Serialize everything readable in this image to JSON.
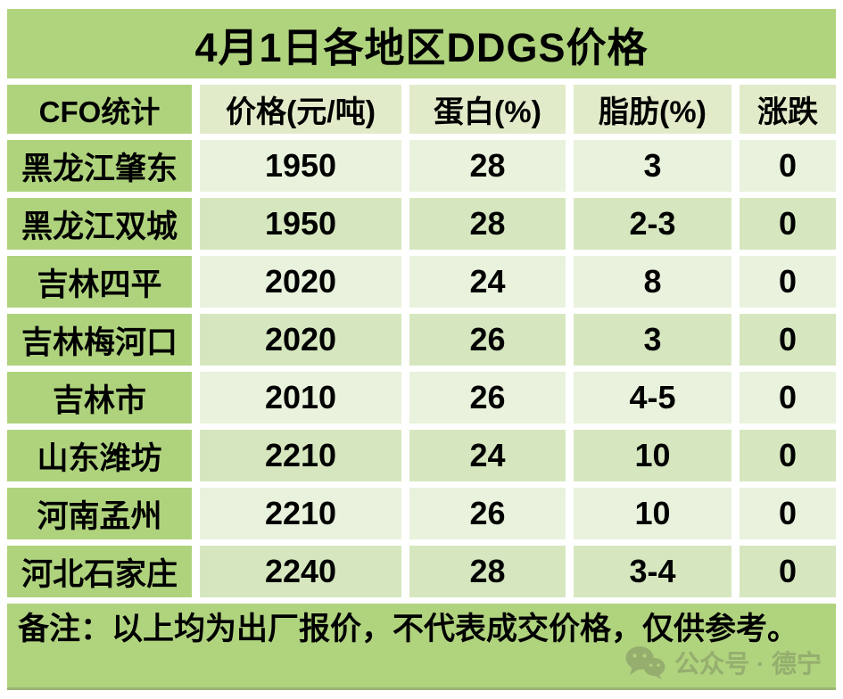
{
  "title": "4月1日各地区DDGS价格",
  "chart_data": {
    "type": "table",
    "title": "4月1日各地区DDGS价格",
    "columns": [
      "CFO统计",
      "价格(元/吨)",
      "蛋白(%)",
      "脂肪(%)",
      "涨跌"
    ],
    "rows": [
      [
        "黑龙江肇东",
        "1950",
        "28",
        "3",
        "0"
      ],
      [
        "黑龙江双城",
        "1950",
        "28",
        "2-3",
        "0"
      ],
      [
        "吉林四平",
        "2020",
        "24",
        "8",
        "0"
      ],
      [
        "吉林梅河口",
        "2020",
        "26",
        "3",
        "0"
      ],
      [
        "吉林市",
        "2010",
        "26",
        "4-5",
        "0"
      ],
      [
        "山东潍坊",
        "2210",
        "24",
        "10",
        "0"
      ],
      [
        "河南孟州",
        "2210",
        "26",
        "10",
        "0"
      ],
      [
        "河北石家庄",
        "2240",
        "28",
        "3-4",
        "0"
      ]
    ],
    "note": "备注：以上均为出厂报价，不代表成交价格，仅供参考。"
  },
  "footer": {
    "note": "备注：以上均为出厂报价，不代表成交价格，仅供参考。"
  },
  "watermark": {
    "icon": "wechat-icon",
    "text": "公众号 · 德宁"
  },
  "colors": {
    "title_bg": "#b0d37e",
    "label_bg": "#afd37d",
    "header_bg": "#e1ebc9",
    "row_light_bg": "#e9f2dc",
    "row_dark_bg": "#d6e7bf",
    "footer_bg": "#b0d37e",
    "watermark": "#95ae6e",
    "text": "#000000"
  }
}
